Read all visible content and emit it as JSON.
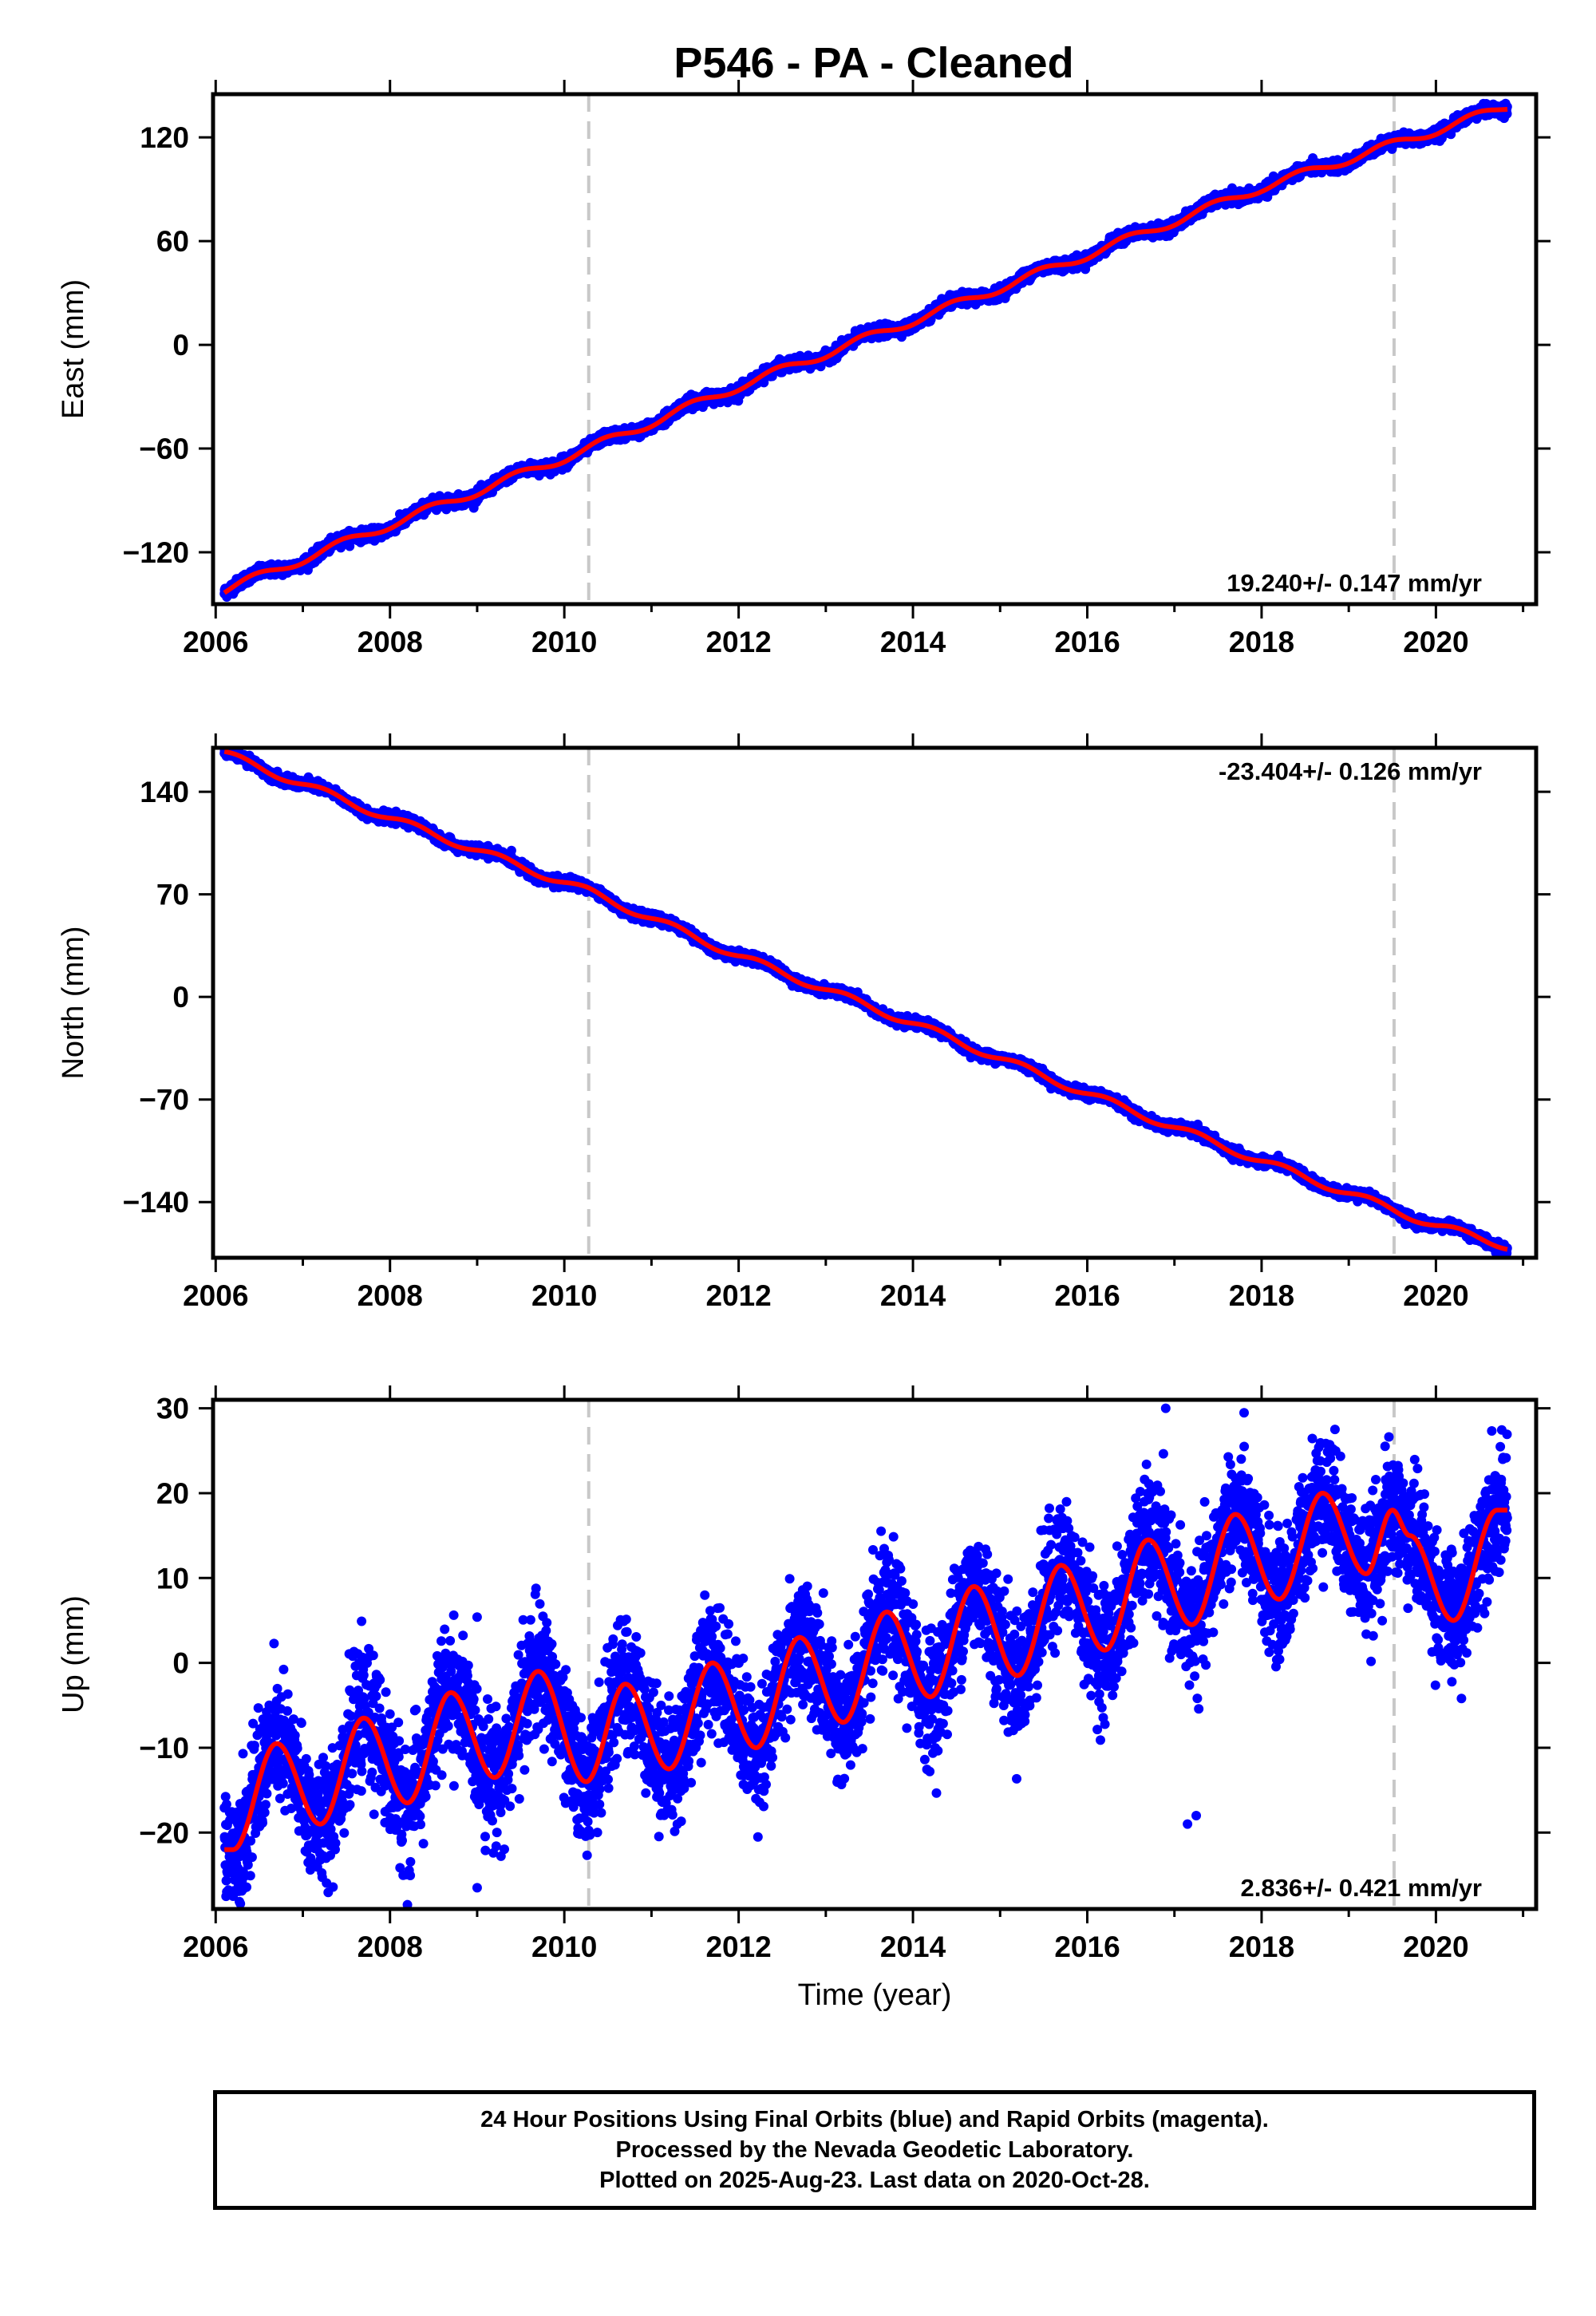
{
  "title": "P546  - PA - Cleaned",
  "colors": {
    "points": "#0000ff",
    "fit": "#ff0000",
    "event_lines": "#c8c8c8",
    "frame": "#000000"
  },
  "footer": {
    "line1": "24 Hour Positions Using Final Orbits (blue) and Rapid Orbits (magenta).",
    "line2": "Processed by the Nevada Geodetic Laboratory.",
    "line3": "Plotted on 2025-Aug-23. Last data on 2020-Oct-28."
  },
  "chart_data": [
    {
      "type": "scatter",
      "ylabel": "East (mm)",
      "xlabel": "",
      "xlim": [
        2005.97,
        2021.15
      ],
      "ylim": [
        -150,
        145
      ],
      "xticks": [
        2006,
        2008,
        2010,
        2012,
        2014,
        2016,
        2018,
        2020
      ],
      "yticks": [
        -120,
        -60,
        0,
        60,
        120
      ],
      "rate_label": "19.240+/- 0.147 mm/yr",
      "rate_position": "bottom-right",
      "event_lines_x": [
        2010.28,
        2019.52
      ],
      "data_range_x": [
        2006.1,
        2020.82
      ],
      "fit": {
        "rate_mm_per_yr": 19.24,
        "reference_epoch": 2013.5,
        "offset_mm": -2,
        "seasonal": [
          {
            "amp_mm": 2.5,
            "period_yr": 1.0,
            "phase_yr": 0.2
          }
        ],
        "noise_mm": 1.6
      },
      "series": [
        {
          "name": "",
          "points": [
            [
              2006.1,
              -142
            ],
            [
              2008,
              -104
            ],
            [
              2010.28,
              -60
            ],
            [
              2012,
              -24
            ],
            [
              2014,
              14
            ],
            [
              2016,
              52
            ],
            [
              2018,
              91
            ],
            [
              2020,
              124
            ],
            [
              2020.82,
              138
            ]
          ]
        }
      ]
    },
    {
      "type": "scatter",
      "ylabel": "North (mm)",
      "xlabel": "",
      "xlim": [
        2005.97,
        2021.15
      ],
      "ylim": [
        -178,
        170
      ],
      "xticks": [
        2006,
        2008,
        2010,
        2012,
        2014,
        2016,
        2018,
        2020
      ],
      "yticks": [
        -140,
        -70,
        0,
        70,
        140
      ],
      "rate_label": "-23.404+/- 0.126 mm/yr",
      "rate_position": "top-right",
      "event_lines_x": [
        2010.28,
        2019.52
      ],
      "data_range_x": [
        2006.1,
        2020.82
      ],
      "fit": {
        "rate_mm_per_yr": -23.404,
        "reference_epoch": 2013.5,
        "offset_mm": 5,
        "seasonal": [
          {
            "amp_mm": 2.5,
            "period_yr": 1.0,
            "phase_yr": 0.0
          }
        ],
        "noise_mm": 1.6
      },
      "series": [
        {
          "name": "",
          "points": [
            [
              2006.1,
              166
            ],
            [
              2008,
              122
            ],
            [
              2010.28,
              72
            ],
            [
              2012,
              28
            ],
            [
              2014,
              -18
            ],
            [
              2016,
              -66
            ],
            [
              2018,
              -112
            ],
            [
              2020,
              -156
            ],
            [
              2020.82,
              -170
            ]
          ]
        }
      ]
    },
    {
      "type": "scatter",
      "ylabel": "Up (mm)",
      "xlabel": "Time (year)",
      "xlim": [
        2005.97,
        2021.15
      ],
      "ylim": [
        -29,
        31
      ],
      "xticks": [
        2006,
        2008,
        2010,
        2012,
        2014,
        2016,
        2018,
        2020
      ],
      "yticks": [
        -20,
        -10,
        0,
        10,
        20,
        30
      ],
      "rate_label": "2.836+/- 0.421 mm/yr",
      "rate_position": "bottom-right",
      "event_lines_x": [
        2010.28,
        2019.52
      ],
      "data_range_x": [
        2006.1,
        2020.82
      ],
      "fit": {
        "rate_mm_per_yr": 2.836,
        "reference_epoch": 2013.5,
        "offset_mm": -1.5,
        "seasonal": [
          {
            "amp_mm": 6.0,
            "period_yr": 1.0,
            "phase_yr": 0.45
          }
        ],
        "noise_mm": 3.6
      },
      "series": [
        {
          "name": "",
          "points": [
            [
              2006.2,
              -22
            ],
            [
              2006.7,
              -9.5
            ],
            [
              2007.2,
              -19
            ],
            [
              2007.7,
              -6.5
            ],
            [
              2008.2,
              -16.5
            ],
            [
              2008.7,
              -3.5
            ],
            [
              2009.2,
              -13.5
            ],
            [
              2009.7,
              -1
            ],
            [
              2010.25,
              -14
            ],
            [
              2010.7,
              -2.5
            ],
            [
              2011.2,
              -12.5
            ],
            [
              2011.7,
              0
            ],
            [
              2012.2,
              -10
            ],
            [
              2012.7,
              3
            ],
            [
              2013.2,
              -7
            ],
            [
              2013.7,
              6
            ],
            [
              2014.2,
              -4
            ],
            [
              2014.7,
              9
            ],
            [
              2015.2,
              -1.5
            ],
            [
              2015.7,
              11.5
            ],
            [
              2016.2,
              1.5
            ],
            [
              2016.7,
              14.5
            ],
            [
              2017.2,
              4.5
            ],
            [
              2017.7,
              17.5
            ],
            [
              2018.2,
              7.5
            ],
            [
              2018.7,
              20
            ],
            [
              2019.2,
              10.5
            ],
            [
              2019.5,
              18
            ],
            [
              2019.7,
              15
            ],
            [
              2020.2,
              5
            ],
            [
              2020.7,
              18
            ]
          ]
        }
      ],
      "outliers": [
        [
          2009.0,
          -26.5
        ],
        [
          2008.2,
          -28.5
        ],
        [
          2017.15,
          -19
        ],
        [
          2017.25,
          -18
        ],
        [
          2016.9,
          30
        ],
        [
          2017.8,
          25.5
        ],
        [
          2006.2,
          -27.5
        ]
      ]
    }
  ]
}
